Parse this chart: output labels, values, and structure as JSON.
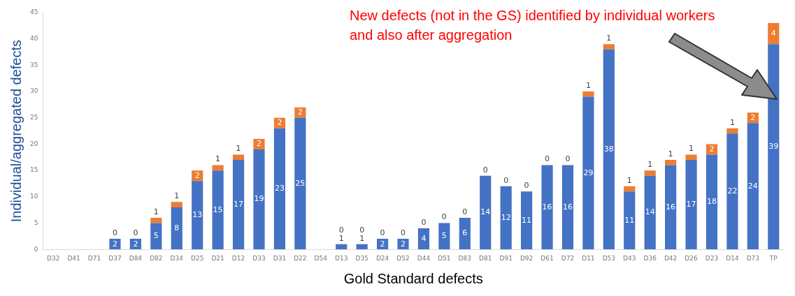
{
  "chart_data": {
    "type": "bar",
    "stacked": true,
    "xlabel": "Gold Standard defects",
    "ylabel": "Individual/aggregated defects",
    "categories": [
      "D32",
      "D41",
      "D71",
      "D37",
      "D84",
      "D82",
      "D34",
      "D25",
      "D21",
      "D12",
      "D33",
      "D31",
      "D22",
      "D54",
      "D13",
      "D35",
      "D24",
      "D52",
      "D44",
      "D51",
      "D83",
      "D81",
      "D91",
      "D92",
      "D61",
      "D72",
      "D11",
      "D53",
      "D43",
      "D36",
      "D42",
      "D26",
      "D23",
      "D14",
      "D73",
      "TP"
    ],
    "series": [
      {
        "color": "#4472c4",
        "values": [
          0,
          0,
          0,
          2,
          2,
          5,
          8,
          13,
          15,
          17,
          19,
          23,
          25,
          0,
          1,
          1,
          2,
          2,
          4,
          5,
          6,
          14,
          12,
          11,
          16,
          16,
          29,
          38,
          11,
          14,
          16,
          17,
          18,
          22,
          24,
          39
        ],
        "value_labels": [
          null,
          null,
          null,
          "2",
          "2",
          "5",
          "8",
          "13",
          "15",
          "17",
          "19",
          "23",
          "25",
          null,
          "1",
          "1",
          "2",
          "2",
          "4",
          "5",
          "6",
          "14",
          "12",
          "11",
          "16",
          "16",
          "29",
          "38",
          "11",
          "14",
          "16",
          "17",
          "18",
          "22",
          "24",
          "39"
        ]
      },
      {
        "color": "#ed7d31",
        "values": [
          0,
          0,
          0,
          0,
          0,
          1,
          1,
          2,
          1,
          1,
          2,
          2,
          2,
          0,
          0,
          0,
          0,
          0,
          0,
          0,
          0,
          0,
          0,
          0,
          0,
          0,
          1,
          1,
          1,
          1,
          1,
          1,
          2,
          1,
          2,
          4
        ],
        "value_labels": [
          null,
          null,
          null,
          "0",
          "0",
          "1",
          "1",
          "2",
          "1",
          "1",
          "2",
          "2",
          "2",
          null,
          "0",
          "0",
          "0",
          "0",
          "0",
          "0",
          "0",
          "0",
          "0",
          "0",
          "0",
          "0",
          "1",
          "1",
          "1",
          "1",
          "1",
          "1",
          "2",
          "1",
          "2",
          "4"
        ]
      }
    ],
    "ylim": [
      0,
      45
    ],
    "yticks": [
      0,
      5,
      10,
      15,
      20,
      25,
      30,
      35,
      40,
      45
    ],
    "grid": false,
    "legend": false,
    "annotations": [
      "New defects (not in the GS) identified by individual workers and also after aggregation"
    ]
  }
}
